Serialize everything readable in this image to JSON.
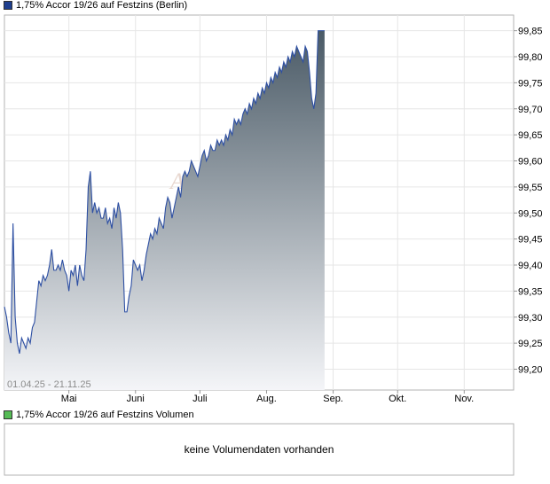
{
  "legend": {
    "price_label": "1,75% Accor 19/26 auf Festzins (Berlin)",
    "price_color": "#1f3f8f",
    "volume_label": "1,75% Accor 19/26 auf Festzins Volumen",
    "volume_color": "#55bb55"
  },
  "watermark": "AKTIEN",
  "date_range": "01.04.25 - 21.11.25",
  "volume_panel": {
    "message": "keine Volumendaten vorhanden"
  },
  "chart_data": {
    "type": "area",
    "title": "",
    "xlabel": "",
    "ylabel": "",
    "ylim": [
      99.16,
      99.88
    ],
    "grid": true,
    "y_axis_position": "right",
    "y_ticks": [
      "99,20",
      "99,25",
      "99,30",
      "99,35",
      "99,40",
      "99,45",
      "99,50",
      "99,55",
      "99,60",
      "99,65",
      "99,70",
      "99,75",
      "99,80",
      "99,85"
    ],
    "x_ticks": [
      "Mai",
      "Juni",
      "Juli",
      "Aug.",
      "Sep.",
      "Okt.",
      "Nov."
    ],
    "x_tick_dates": [
      "2025-05-01",
      "2025-06-01",
      "2025-07-01",
      "2025-08-01",
      "2025-09-01",
      "2025-10-01",
      "2025-11-01"
    ],
    "x_range": [
      "2025-04-01",
      "2025-11-24"
    ],
    "line_color": "#2d4fa3",
    "fill_top_color": "#4a5a66",
    "fill_bottom_color": "#f4f5f8",
    "series": [
      {
        "points": [
          [
            "2025-04-01",
            99.32
          ],
          [
            "2025-04-02",
            99.3
          ],
          [
            "2025-04-03",
            99.27
          ],
          [
            "2025-04-04",
            99.25
          ],
          [
            "2025-04-05",
            99.48
          ],
          [
            "2025-04-06",
            99.3
          ],
          [
            "2025-04-07",
            99.25
          ],
          [
            "2025-04-08",
            99.23
          ],
          [
            "2025-04-09",
            99.26
          ],
          [
            "2025-04-10",
            99.25
          ],
          [
            "2025-04-11",
            99.24
          ],
          [
            "2025-04-12",
            99.26
          ],
          [
            "2025-04-13",
            99.25
          ],
          [
            "2025-04-14",
            99.28
          ],
          [
            "2025-04-15",
            99.29
          ],
          [
            "2025-04-16",
            99.33
          ],
          [
            "2025-04-17",
            99.37
          ],
          [
            "2025-04-18",
            99.36
          ],
          [
            "2025-04-19",
            99.38
          ],
          [
            "2025-04-20",
            99.37
          ],
          [
            "2025-04-21",
            99.38
          ],
          [
            "2025-04-22",
            99.4
          ],
          [
            "2025-04-23",
            99.43
          ],
          [
            "2025-04-24",
            99.39
          ],
          [
            "2025-04-25",
            99.39
          ],
          [
            "2025-04-26",
            99.4
          ],
          [
            "2025-04-27",
            99.39
          ],
          [
            "2025-04-28",
            99.41
          ],
          [
            "2025-04-29",
            99.39
          ],
          [
            "2025-04-30",
            99.38
          ],
          [
            "2025-05-01",
            99.35
          ],
          [
            "2025-05-02",
            99.39
          ],
          [
            "2025-05-03",
            99.38
          ],
          [
            "2025-05-04",
            99.4
          ],
          [
            "2025-05-05",
            99.36
          ],
          [
            "2025-05-06",
            99.4
          ],
          [
            "2025-05-07",
            99.38
          ],
          [
            "2025-05-08",
            99.37
          ],
          [
            "2025-05-09",
            99.43
          ],
          [
            "2025-05-10",
            99.55
          ],
          [
            "2025-05-11",
            99.58
          ],
          [
            "2025-05-12",
            99.5
          ],
          [
            "2025-05-13",
            99.52
          ],
          [
            "2025-05-14",
            99.5
          ],
          [
            "2025-05-15",
            99.51
          ],
          [
            "2025-05-16",
            99.49
          ],
          [
            "2025-05-17",
            99.49
          ],
          [
            "2025-05-18",
            99.51
          ],
          [
            "2025-05-19",
            99.48
          ],
          [
            "2025-05-20",
            99.49
          ],
          [
            "2025-05-21",
            99.47
          ],
          [
            "2025-05-22",
            99.51
          ],
          [
            "2025-05-23",
            99.49
          ],
          [
            "2025-05-24",
            99.52
          ],
          [
            "2025-05-25",
            99.5
          ],
          [
            "2025-05-26",
            99.43
          ],
          [
            "2025-05-27",
            99.31
          ],
          [
            "2025-05-28",
            99.31
          ],
          [
            "2025-05-29",
            99.34
          ],
          [
            "2025-05-30",
            99.36
          ],
          [
            "2025-05-31",
            99.41
          ],
          [
            "2025-06-01",
            99.4
          ],
          [
            "2025-06-02",
            99.39
          ],
          [
            "2025-06-03",
            99.4
          ],
          [
            "2025-06-04",
            99.37
          ],
          [
            "2025-06-05",
            99.39
          ],
          [
            "2025-06-06",
            99.42
          ],
          [
            "2025-06-07",
            99.44
          ],
          [
            "2025-06-08",
            99.46
          ],
          [
            "2025-06-09",
            99.45
          ],
          [
            "2025-06-10",
            99.47
          ],
          [
            "2025-06-11",
            99.46
          ],
          [
            "2025-06-12",
            99.49
          ],
          [
            "2025-06-13",
            99.48
          ],
          [
            "2025-06-14",
            99.47
          ],
          [
            "2025-06-15",
            99.51
          ],
          [
            "2025-06-16",
            99.53
          ],
          [
            "2025-06-17",
            99.52
          ],
          [
            "2025-06-18",
            99.49
          ],
          [
            "2025-06-19",
            99.51
          ],
          [
            "2025-06-20",
            99.53
          ],
          [
            "2025-06-21",
            99.55
          ],
          [
            "2025-06-22",
            99.53
          ],
          [
            "2025-06-23",
            99.57
          ],
          [
            "2025-06-24",
            99.58
          ],
          [
            "2025-06-25",
            99.57
          ],
          [
            "2025-06-26",
            99.58
          ],
          [
            "2025-06-27",
            99.6
          ],
          [
            "2025-06-28",
            99.59
          ],
          [
            "2025-06-29",
            99.58
          ],
          [
            "2025-06-30",
            99.57
          ],
          [
            "2025-07-01",
            99.59
          ],
          [
            "2025-07-02",
            99.61
          ],
          [
            "2025-07-03",
            99.62
          ],
          [
            "2025-07-04",
            99.6
          ],
          [
            "2025-07-05",
            99.61
          ],
          [
            "2025-07-06",
            99.63
          ],
          [
            "2025-07-07",
            99.62
          ],
          [
            "2025-07-08",
            99.62
          ],
          [
            "2025-07-09",
            99.64
          ],
          [
            "2025-07-10",
            99.63
          ],
          [
            "2025-07-11",
            99.64
          ],
          [
            "2025-07-12",
            99.63
          ],
          [
            "2025-07-13",
            99.65
          ],
          [
            "2025-07-14",
            99.64
          ],
          [
            "2025-07-15",
            99.66
          ],
          [
            "2025-07-16",
            99.65
          ],
          [
            "2025-07-17",
            99.68
          ],
          [
            "2025-07-18",
            99.67
          ],
          [
            "2025-07-19",
            99.68
          ],
          [
            "2025-07-20",
            99.67
          ],
          [
            "2025-07-21",
            99.69
          ],
          [
            "2025-07-22",
            99.7
          ],
          [
            "2025-07-23",
            99.69
          ],
          [
            "2025-07-24",
            99.71
          ],
          [
            "2025-07-25",
            99.7
          ],
          [
            "2025-07-26",
            99.72
          ],
          [
            "2025-07-27",
            99.71
          ],
          [
            "2025-07-28",
            99.73
          ],
          [
            "2025-07-29",
            99.72
          ],
          [
            "2025-07-30",
            99.74
          ],
          [
            "2025-07-31",
            99.73
          ],
          [
            "2025-08-01",
            99.75
          ],
          [
            "2025-08-02",
            99.74
          ],
          [
            "2025-08-03",
            99.76
          ],
          [
            "2025-08-04",
            99.75
          ],
          [
            "2025-08-05",
            99.77
          ],
          [
            "2025-08-06",
            99.76
          ],
          [
            "2025-08-07",
            99.78
          ],
          [
            "2025-08-08",
            99.77
          ],
          [
            "2025-08-09",
            99.79
          ],
          [
            "2025-08-10",
            99.78
          ],
          [
            "2025-08-11",
            99.8
          ],
          [
            "2025-08-12",
            99.79
          ],
          [
            "2025-08-13",
            99.81
          ],
          [
            "2025-08-14",
            99.8
          ],
          [
            "2025-08-15",
            99.82
          ],
          [
            "2025-08-16",
            99.81
          ],
          [
            "2025-08-17",
            99.8
          ],
          [
            "2025-08-18",
            99.79
          ],
          [
            "2025-08-19",
            99.82
          ],
          [
            "2025-08-20",
            99.81
          ],
          [
            "2025-08-21",
            99.77
          ],
          [
            "2025-08-22",
            99.72
          ],
          [
            "2025-08-23",
            99.7
          ],
          [
            "2025-08-24",
            99.73
          ],
          [
            "2025-08-25",
            99.85
          ],
          [
            "2025-08-26",
            99.85
          ],
          [
            "2025-08-27",
            99.85
          ],
          [
            "2025-08-28",
            99.85
          ]
        ]
      }
    ]
  }
}
